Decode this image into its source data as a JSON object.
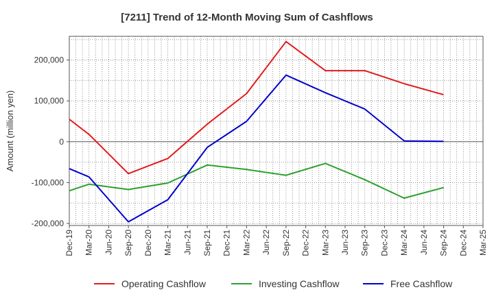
{
  "chart_data": {
    "type": "line",
    "title": "[7211]  Trend of 12-Month Moving Sum of Cashflows",
    "xlabel": "",
    "ylabel": "Amount (million yen)",
    "categories": [
      "Dec-19",
      "Mar-20",
      "Jun-20",
      "Sep-20",
      "Dec-20",
      "Mar-21",
      "Jun-21",
      "Sep-21",
      "Dec-21",
      "Mar-22",
      "Jun-22",
      "Sep-22",
      "Dec-22",
      "Mar-23",
      "Jun-23",
      "Sep-23",
      "Dec-23",
      "Mar-24",
      "Jun-24",
      "Sep-24",
      "Dec-24",
      "Mar-25"
    ],
    "ylim": [
      -205000,
      258000
    ],
    "yticks": [
      200000,
      100000,
      0,
      -100000,
      -200000
    ],
    "ytick_labels": [
      "200,000",
      "100,000",
      "0",
      "-100,000",
      "-200,000"
    ],
    "grid": true,
    "legend_position": "bottom",
    "series": [
      {
        "name": "Operating Cashflow",
        "color": "#e31a1c",
        "points": [
          {
            "x": "Dec-19",
            "y": 55000
          },
          {
            "x": "Mar-20",
            "y": 18000
          },
          {
            "x": "Sep-20",
            "y": -78000
          },
          {
            "x": "Mar-21",
            "y": -41000
          },
          {
            "x": "Sep-21",
            "y": 43000
          },
          {
            "x": "Mar-22",
            "y": 118000
          },
          {
            "x": "Sep-22",
            "y": 245000
          },
          {
            "x": "Mar-23",
            "y": 174000
          },
          {
            "x": "Sep-23",
            "y": 174000
          },
          {
            "x": "Mar-24",
            "y": 142000
          },
          {
            "x": "Sep-24",
            "y": 115000
          }
        ]
      },
      {
        "name": "Investing Cashflow",
        "color": "#2ca02c",
        "points": [
          {
            "x": "Dec-19",
            "y": -120000
          },
          {
            "x": "Mar-20",
            "y": -104000
          },
          {
            "x": "Sep-20",
            "y": -117000
          },
          {
            "x": "Mar-21",
            "y": -101000
          },
          {
            "x": "Sep-21",
            "y": -57000
          },
          {
            "x": "Mar-22",
            "y": -68000
          },
          {
            "x": "Sep-22",
            "y": -82000
          },
          {
            "x": "Mar-23",
            "y": -53000
          },
          {
            "x": "Sep-23",
            "y": -93000
          },
          {
            "x": "Mar-24",
            "y": -138000
          },
          {
            "x": "Sep-24",
            "y": -112000
          }
        ]
      },
      {
        "name": "Free Cashflow",
        "color": "#0000cc",
        "points": [
          {
            "x": "Dec-19",
            "y": -66000
          },
          {
            "x": "Mar-20",
            "y": -86000
          },
          {
            "x": "Sep-20",
            "y": -196000
          },
          {
            "x": "Mar-21",
            "y": -142000
          },
          {
            "x": "Sep-21",
            "y": -14000
          },
          {
            "x": "Mar-22",
            "y": 50000
          },
          {
            "x": "Sep-22",
            "y": 163000
          },
          {
            "x": "Mar-23",
            "y": 120000
          },
          {
            "x": "Sep-23",
            "y": 80000
          },
          {
            "x": "Mar-24",
            "y": 2000
          },
          {
            "x": "Sep-24",
            "y": 1000
          }
        ]
      }
    ]
  }
}
